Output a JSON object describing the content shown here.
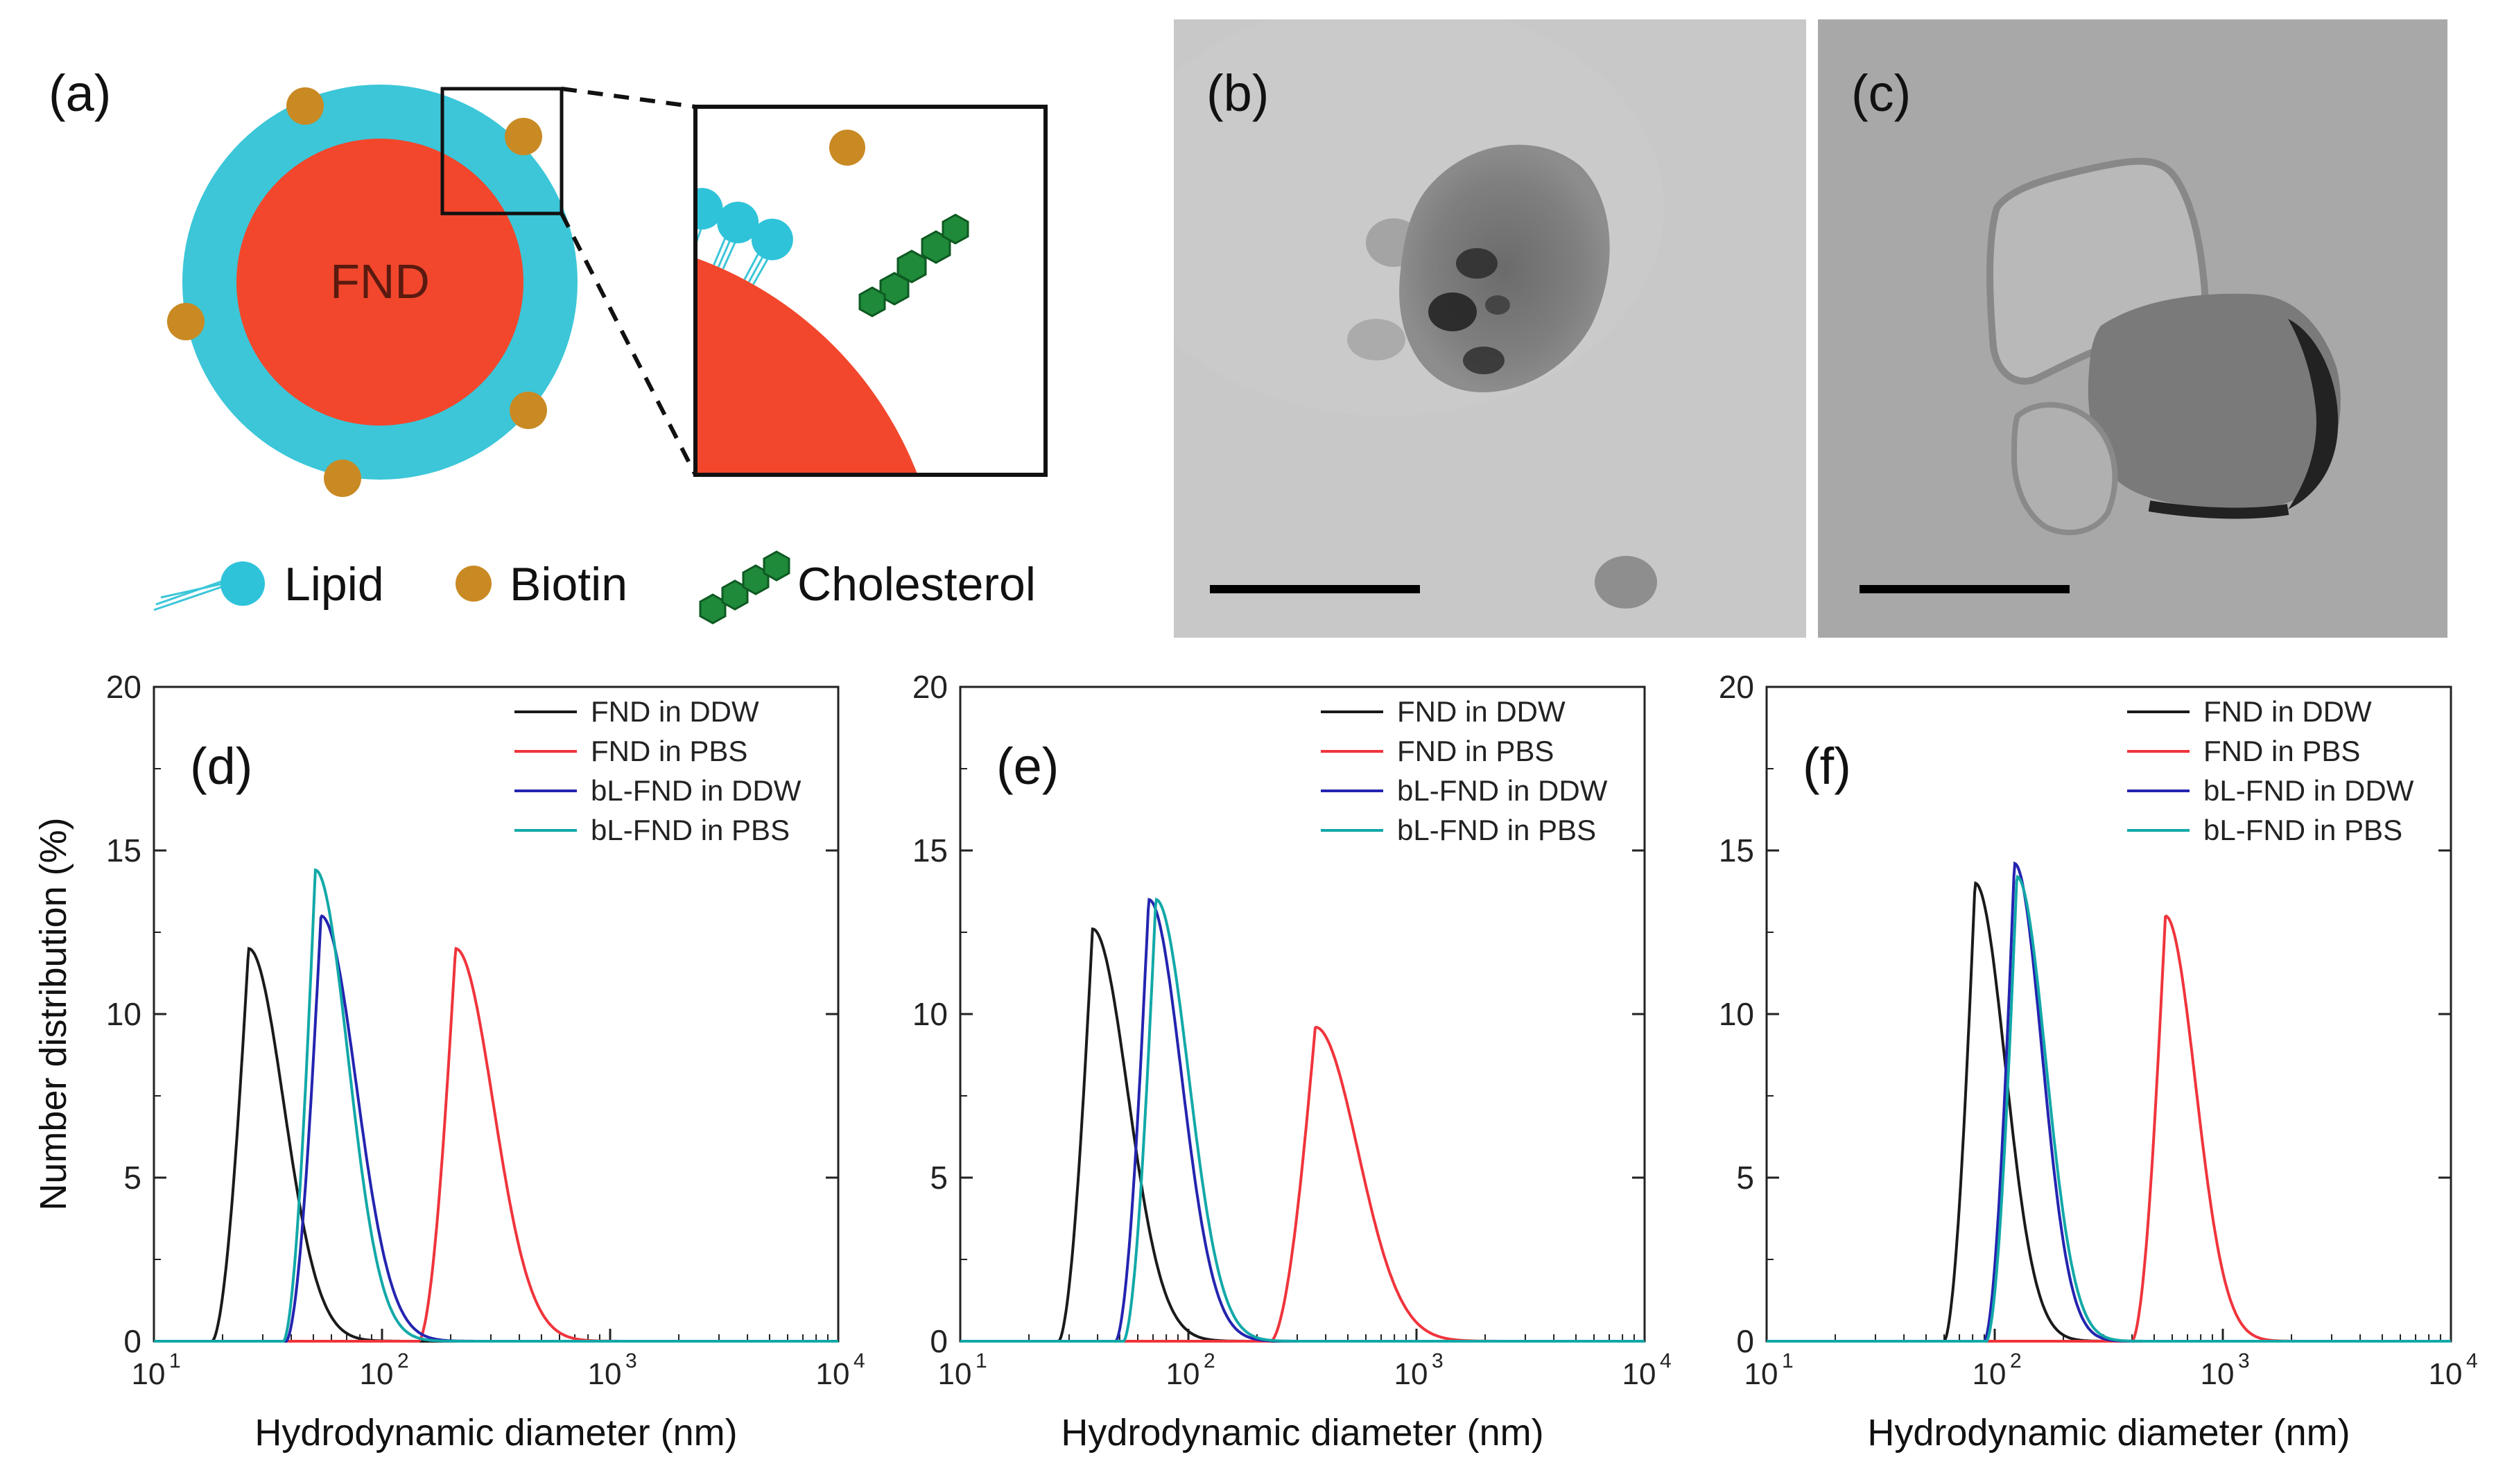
{
  "panel_a": {
    "label": "(a)",
    "core_label": "FND",
    "legend": {
      "lipid": "Lipid",
      "biotin": "Biotin",
      "cholesterol": "Cholesterol"
    },
    "colors": {
      "shell": "#3cc6d8",
      "core": "#f2472c",
      "biotin": "#c98a24",
      "cholesterol": "#1f8a3a"
    }
  },
  "panel_b": {
    "label": "(b)"
  },
  "panel_c": {
    "label": "(c)"
  },
  "plot_common": {
    "xlabel": "Hydrodynamic diameter (nm)",
    "ylabel": "Number distribution (%)",
    "ylim": [
      0,
      20
    ],
    "yticks": [
      "0",
      "5",
      "10",
      "15",
      "20"
    ],
    "xscale": "log",
    "xlim": [
      10,
      10000
    ],
    "xticks": [
      {
        "base": "10",
        "exp": "1"
      },
      {
        "base": "10",
        "exp": "2"
      },
      {
        "base": "10",
        "exp": "3"
      },
      {
        "base": "10",
        "exp": "4"
      }
    ],
    "legend": [
      "FND in DDW",
      "FND in PBS",
      "bL-FND in DDW",
      "bL-FND in PBS"
    ],
    "colors": [
      "#1a1a1a",
      "#f0343c",
      "#2424b0",
      "#12a8a8"
    ]
  },
  "chart_data": [
    {
      "type": "line",
      "label": "(d)",
      "series": [
        {
          "name": "FND in DDW",
          "peak": 26,
          "height": 12.0,
          "sigma": 0.14,
          "start": 18
        },
        {
          "name": "FND in PBS",
          "peak": 210,
          "height": 12.0,
          "sigma": 0.15,
          "start": 145
        },
        {
          "name": "bL-FND in DDW",
          "peak": 54,
          "height": 13.0,
          "sigma": 0.14,
          "start": 38
        },
        {
          "name": "bL-FND in PBS",
          "peak": 51,
          "height": 14.4,
          "sigma": 0.13,
          "start": 37
        }
      ]
    },
    {
      "type": "line",
      "label": "(e)",
      "series": [
        {
          "name": "FND in DDW",
          "peak": 38,
          "height": 12.6,
          "sigma": 0.14,
          "start": 27
        },
        {
          "name": "FND in PBS",
          "peak": 360,
          "height": 9.6,
          "sigma": 0.17,
          "start": 230
        },
        {
          "name": "bL-FND in DDW",
          "peak": 67,
          "height": 13.5,
          "sigma": 0.13,
          "start": 48
        },
        {
          "name": "bL-FND in PBS",
          "peak": 72,
          "height": 13.5,
          "sigma": 0.13,
          "start": 52
        }
      ]
    },
    {
      "type": "line",
      "label": "(f)",
      "series": [
        {
          "name": "FND in DDW",
          "peak": 82,
          "height": 14.0,
          "sigma": 0.12,
          "start": 60
        },
        {
          "name": "FND in PBS",
          "peak": 560,
          "height": 13.0,
          "sigma": 0.12,
          "start": 400
        },
        {
          "name": "bL-FND in DDW",
          "peak": 122,
          "height": 14.6,
          "sigma": 0.11,
          "start": 90
        },
        {
          "name": "bL-FND in PBS",
          "peak": 125,
          "height": 14.2,
          "sigma": 0.115,
          "start": 92
        }
      ]
    }
  ]
}
